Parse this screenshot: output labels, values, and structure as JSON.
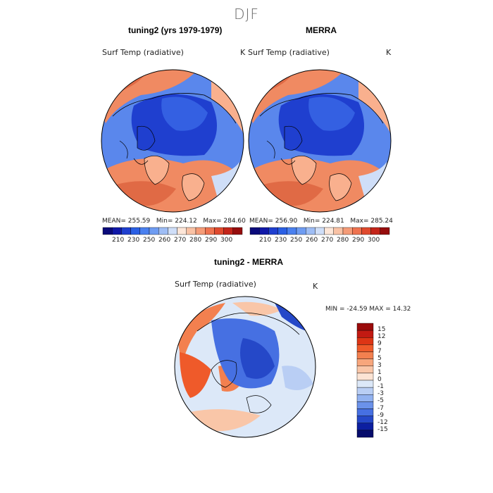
{
  "season": "DJF",
  "panels": [
    {
      "title": "tuning2 (yrs 1979-1979)",
      "variable": "Surf Temp (radiative)",
      "units": "K",
      "mean_label": "MEAN=",
      "mean": "255.59",
      "min_label": "Min=",
      "min": "224.12",
      "max_label": "Max=",
      "max": "284.60"
    },
    {
      "title": "MERRA",
      "variable": "Surf Temp (radiative)",
      "units": "K",
      "mean_label": "MEAN=",
      "mean": "256.90",
      "min_label": "Min=",
      "min": "224.81",
      "max_label": "Max=",
      "max": "285.24"
    }
  ],
  "abs_colorbar": {
    "ticks": [
      "210",
      "230",
      "250",
      "260",
      "270",
      "280",
      "290",
      "300"
    ],
    "colors": [
      "#0a0a7a",
      "#1018a8",
      "#1f3fcf",
      "#2a5fe4",
      "#4a80ef",
      "#6e9cf2",
      "#9ebdf5",
      "#cfdef8",
      "#fde6d8",
      "#f9c2a5",
      "#f59c78",
      "#ef7350",
      "#e04a2e",
      "#c4251a",
      "#960d0d"
    ]
  },
  "diff_panel": {
    "title": "tuning2 - MERRA",
    "variable": "Surf Temp (radiative)",
    "units": "K",
    "minmax_label": "MIN = -24.59 MAX =  14.32"
  },
  "diff_colorbar": {
    "ticks": [
      "15",
      "12",
      "9",
      "7",
      "5",
      "3",
      "1",
      "0",
      "-1",
      "-3",
      "-5",
      "-7",
      "-9",
      "-12",
      "-15"
    ],
    "colors": [
      "#9a0b0b",
      "#c21a12",
      "#dd3515",
      "#ef5a2a",
      "#f3804f",
      "#f7a67c",
      "#f9c6a8",
      "#fce4d4",
      "#dce8f8",
      "#b9cef4",
      "#92b2f0",
      "#6b92ea",
      "#4670e2",
      "#2548c8",
      "#0c1fa0",
      "#060c6c"
    ]
  },
  "map_colors": {
    "cold_deep": "#1f3fcf",
    "cold_mid": "#3460e2",
    "cold_light": "#5a87ec",
    "pale_blue": "#cfdef8",
    "pale_peach": "#fde6d8",
    "warm_light": "#f9b08e",
    "warm_mid": "#f08a62",
    "warm_deep": "#e06a45"
  }
}
